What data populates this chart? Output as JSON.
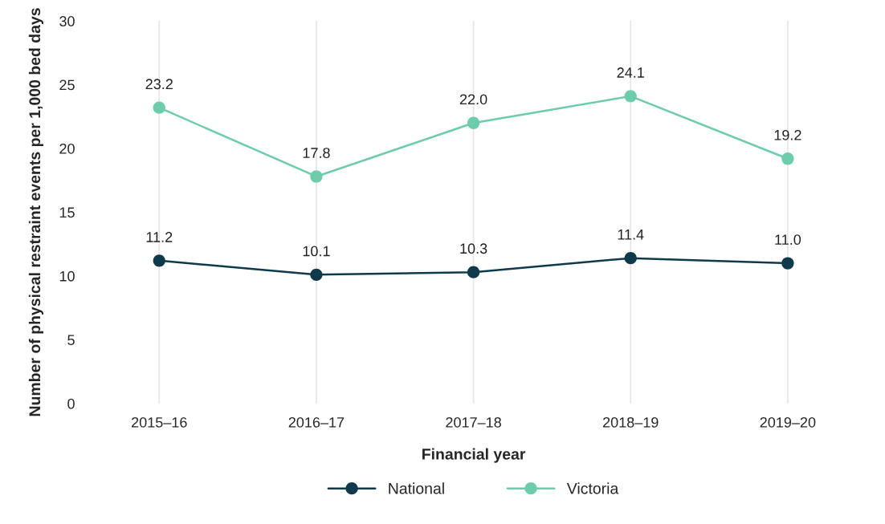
{
  "chart_data": {
    "type": "line",
    "xlabel": "Financial year",
    "ylabel": "Number of physical restraint events per 1,000 bed days",
    "categories": [
      "2015–16",
      "2016–17",
      "2017–18",
      "2018–19",
      "2019–20"
    ],
    "series": [
      {
        "name": "National",
        "color": "#0e3a4c",
        "values": [
          11.2,
          10.1,
          10.3,
          11.4,
          11.0
        ],
        "value_labels": [
          "11.2",
          "10.1",
          "10.3",
          "11.4",
          "11.0"
        ]
      },
      {
        "name": "Victoria",
        "color": "#6dcca9",
        "values": [
          23.2,
          17.8,
          22.0,
          24.1,
          19.2
        ],
        "value_labels": [
          "23.2",
          "17.8",
          "22.0",
          "24.1",
          "19.2"
        ]
      }
    ],
    "ylim": [
      0,
      30
    ],
    "yticks": [
      0,
      5,
      10,
      15,
      20,
      25,
      30
    ],
    "grid": "x",
    "legend": "bottom",
    "marker": "circle",
    "line_style": "solid"
  }
}
